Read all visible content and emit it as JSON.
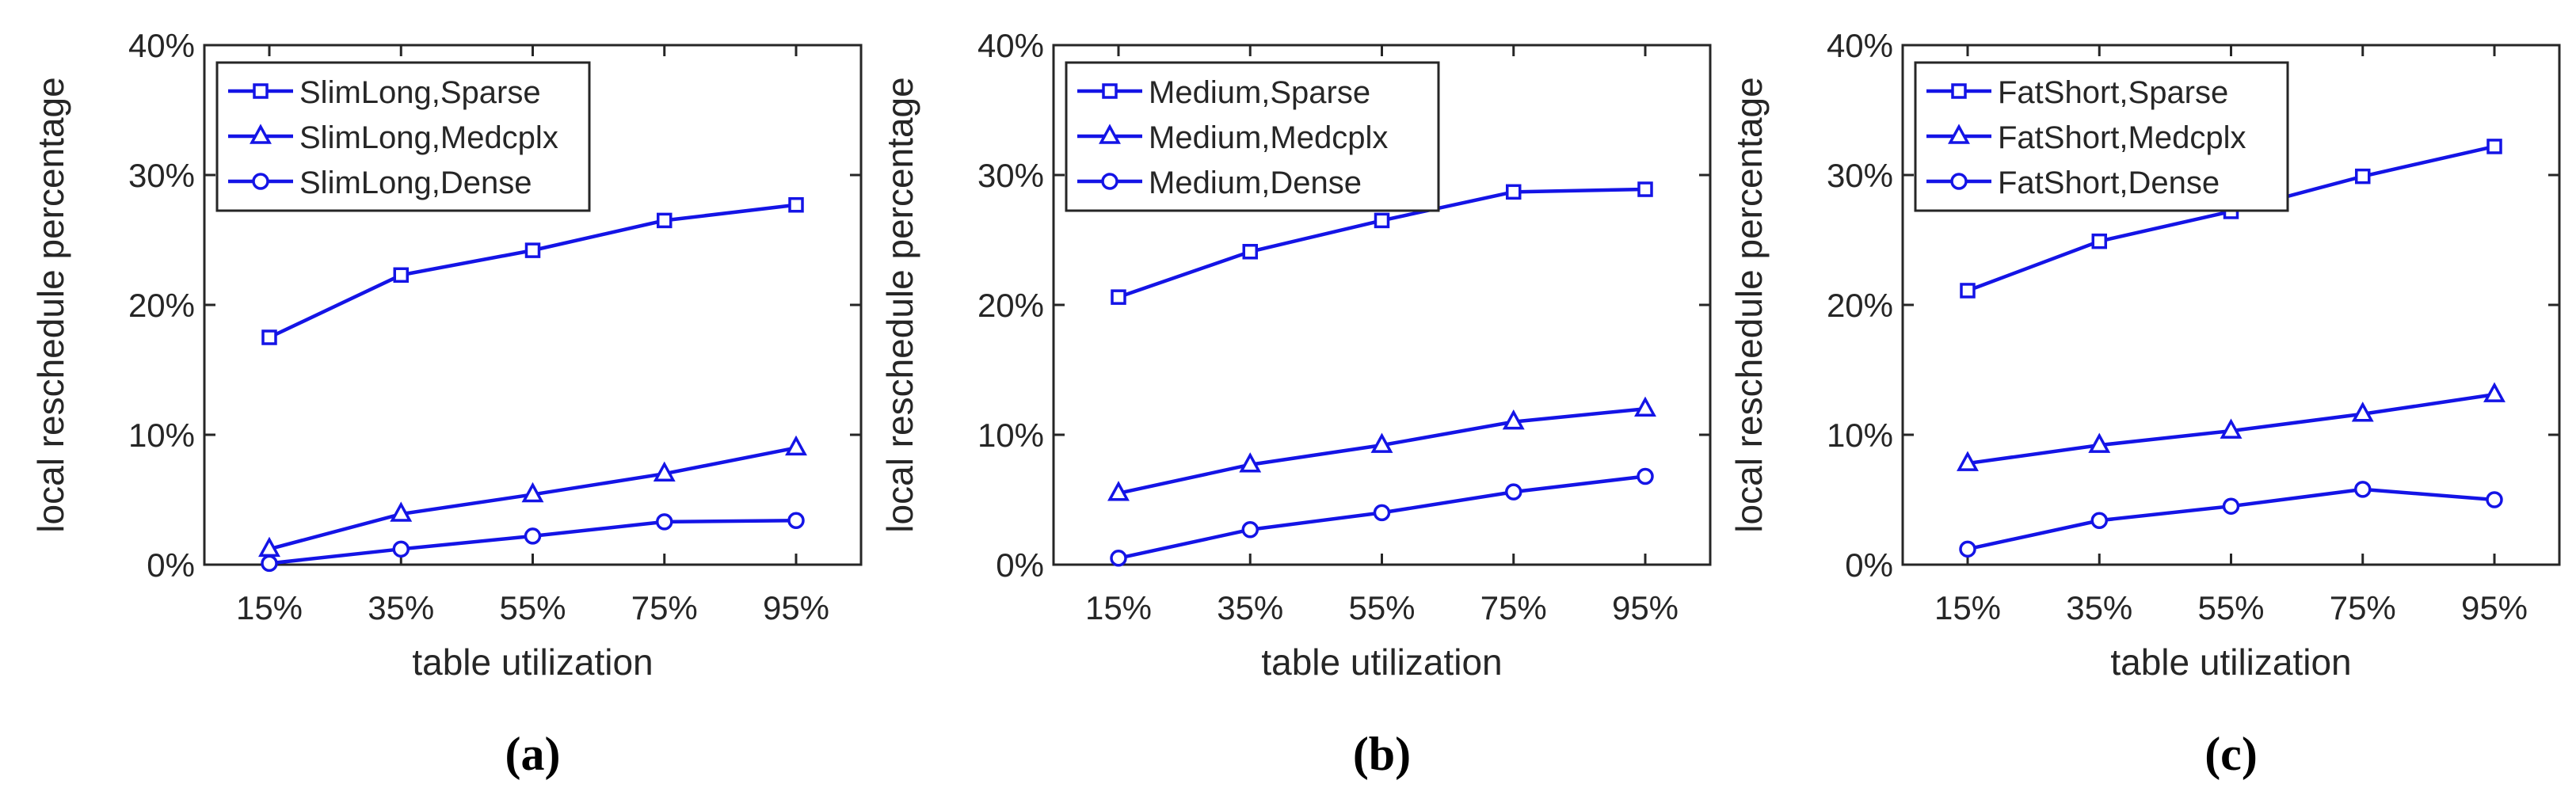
{
  "figure": {
    "colors": {
      "series": "#1414e6",
      "axis": "#262626",
      "background": "#ffffff"
    }
  },
  "chart_data": [
    {
      "type": "line",
      "panel_label": "(a)",
      "title": "",
      "xlabel": "table utilization",
      "ylabel": "local reschedule percentage",
      "categories": [
        "15%",
        "35%",
        "55%",
        "75%",
        "95%"
      ],
      "ylim": [
        0,
        40
      ],
      "yticks": [
        0,
        10,
        20,
        30,
        40
      ],
      "ytick_labels": [
        "0%",
        "10%",
        "20%",
        "30%",
        "40%"
      ],
      "legend_position": "top-left",
      "grid": false,
      "series": [
        {
          "name": "SlimLong,Sparse",
          "marker": "square",
          "values": [
            17.5,
            22.3,
            24.2,
            26.5,
            27.7
          ]
        },
        {
          "name": "SlimLong,Medcplx",
          "marker": "triangle",
          "values": [
            1.2,
            3.9,
            5.4,
            7.0,
            9.0
          ]
        },
        {
          "name": "SlimLong,Dense",
          "marker": "circle",
          "values": [
            0.1,
            1.2,
            2.2,
            3.3,
            3.4
          ]
        }
      ]
    },
    {
      "type": "line",
      "panel_label": "(b)",
      "title": "",
      "xlabel": "table utilization",
      "ylabel": "local reschedule percentage",
      "categories": [
        "15%",
        "35%",
        "55%",
        "75%",
        "95%"
      ],
      "ylim": [
        0,
        40
      ],
      "yticks": [
        0,
        10,
        20,
        30,
        40
      ],
      "ytick_labels": [
        "0%",
        "10%",
        "20%",
        "30%",
        "40%"
      ],
      "legend_position": "top-left",
      "grid": false,
      "series": [
        {
          "name": "Medium,Sparse",
          "marker": "square",
          "values": [
            20.6,
            24.1,
            26.5,
            28.7,
            28.9
          ]
        },
        {
          "name": "Medium,Medcplx",
          "marker": "triangle",
          "values": [
            5.5,
            7.7,
            9.2,
            11.0,
            12.0
          ]
        },
        {
          "name": "Medium,Dense",
          "marker": "circle",
          "values": [
            0.5,
            2.7,
            4.0,
            5.6,
            6.8
          ]
        }
      ]
    },
    {
      "type": "line",
      "panel_label": "(c)",
      "title": "",
      "xlabel": "table utilization",
      "ylabel": "local reschedule percentage",
      "categories": [
        "15%",
        "35%",
        "55%",
        "75%",
        "95%"
      ],
      "ylim": [
        0,
        40
      ],
      "yticks": [
        0,
        10,
        20,
        30,
        40
      ],
      "ytick_labels": [
        "0%",
        "10%",
        "20%",
        "30%",
        "40%"
      ],
      "legend_position": "top-left",
      "grid": false,
      "series": [
        {
          "name": "FatShort,Sparse",
          "marker": "square",
          "values": [
            21.1,
            24.9,
            27.2,
            29.9,
            32.2
          ]
        },
        {
          "name": "FatShort,Medcplx",
          "marker": "triangle",
          "values": [
            7.8,
            9.2,
            10.3,
            11.6,
            13.1
          ]
        },
        {
          "name": "FatShort,Dense",
          "marker": "circle",
          "values": [
            1.2,
            3.4,
            4.5,
            5.8,
            5.0
          ]
        }
      ]
    }
  ]
}
